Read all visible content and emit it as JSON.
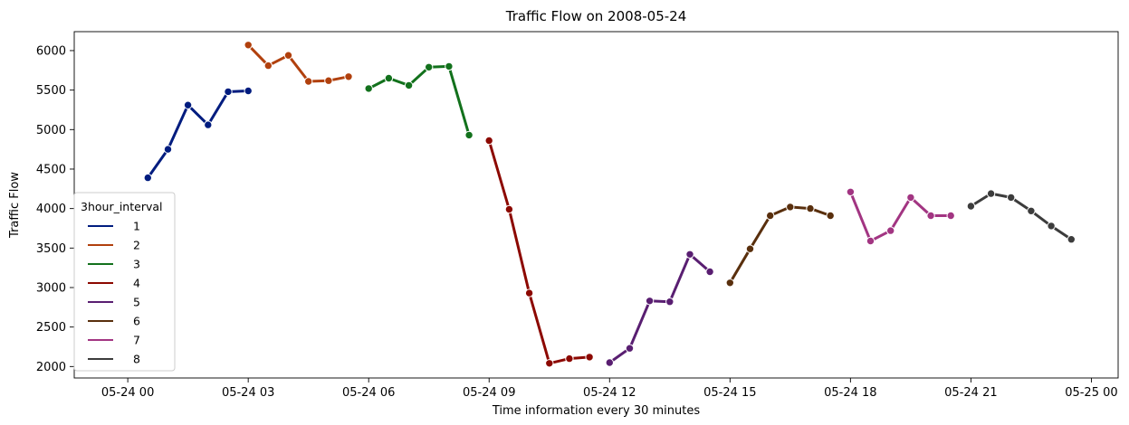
{
  "chart_data": {
    "type": "line",
    "title": "Traffic Flow on 2008-05-24",
    "xlabel": "Time information every 30 minutes",
    "ylabel": "Traffic Flow",
    "x_ticks": [
      "05-24 00",
      "05-24 03",
      "05-24 06",
      "05-24 09",
      "05-24 12",
      "05-24 15",
      "05-24 18",
      "05-24 21",
      "05-25 00"
    ],
    "y_ticks": [
      2000,
      2500,
      3000,
      3500,
      4000,
      4500,
      5000,
      5500,
      6000
    ],
    "ylim": [
      1855,
      6240
    ],
    "xlim": [
      "2008-05-23 22:40",
      "2008-05-25 00:40"
    ],
    "grid": false,
    "legend": {
      "title": "3hour_interval",
      "position": "center-left"
    },
    "series": [
      {
        "name": "1",
        "color": "#001c7f",
        "x": [
          "2008-05-24 00:30",
          "2008-05-24 01:00",
          "2008-05-24 01:30",
          "2008-05-24 02:00",
          "2008-05-24 02:30",
          "2008-05-24 03:00"
        ],
        "values": [
          4390,
          4750,
          5310,
          5060,
          5480,
          5490
        ]
      },
      {
        "name": "2",
        "color": "#b1400d",
        "x": [
          "2008-05-24 03:00",
          "2008-05-24 03:30",
          "2008-05-24 04:00",
          "2008-05-24 04:30",
          "2008-05-24 05:00",
          "2008-05-24 05:30"
        ],
        "values": [
          6070,
          5810,
          5940,
          5610,
          5620,
          5670
        ]
      },
      {
        "name": "3",
        "color": "#12711c",
        "x": [
          "2008-05-24 06:00",
          "2008-05-24 06:30",
          "2008-05-24 07:00",
          "2008-05-24 07:30",
          "2008-05-24 08:00",
          "2008-05-24 08:30"
        ],
        "values": [
          5520,
          5650,
          5560,
          5790,
          5800,
          4930
        ]
      },
      {
        "name": "4",
        "color": "#8c0800",
        "x": [
          "2008-05-24 09:00",
          "2008-05-24 09:30",
          "2008-05-24 10:00",
          "2008-05-24 10:30",
          "2008-05-24 11:00",
          "2008-05-24 11:30"
        ],
        "values": [
          4860,
          3990,
          2930,
          2040,
          2100,
          2120
        ]
      },
      {
        "name": "5",
        "color": "#591e71",
        "x": [
          "2008-05-24 12:00",
          "2008-05-24 12:30",
          "2008-05-24 13:00",
          "2008-05-24 13:30",
          "2008-05-24 14:00",
          "2008-05-24 14:30"
        ],
        "values": [
          2050,
          2230,
          2830,
          2820,
          3420,
          3200
        ]
      },
      {
        "name": "6",
        "color": "#592f0d",
        "x": [
          "2008-05-24 15:00",
          "2008-05-24 15:30",
          "2008-05-24 16:00",
          "2008-05-24 16:30",
          "2008-05-24 17:00",
          "2008-05-24 17:30"
        ],
        "values": [
          3060,
          3490,
          3910,
          4020,
          4000,
          3910
        ]
      },
      {
        "name": "7",
        "color": "#a23582",
        "x": [
          "2008-05-24 18:00",
          "2008-05-24 18:30",
          "2008-05-24 19:00",
          "2008-05-24 19:30",
          "2008-05-24 20:00",
          "2008-05-24 20:30"
        ],
        "values": [
          4210,
          3590,
          3720,
          4140,
          3910,
          3910
        ]
      },
      {
        "name": "8",
        "color": "#3c3c3c",
        "x": [
          "2008-05-24 21:00",
          "2008-05-24 21:30",
          "2008-05-24 22:00",
          "2008-05-24 22:30",
          "2008-05-24 23:00",
          "2008-05-24 23:30"
        ],
        "values": [
          4030,
          4190,
          4140,
          3970,
          3780,
          3610
        ]
      }
    ]
  }
}
